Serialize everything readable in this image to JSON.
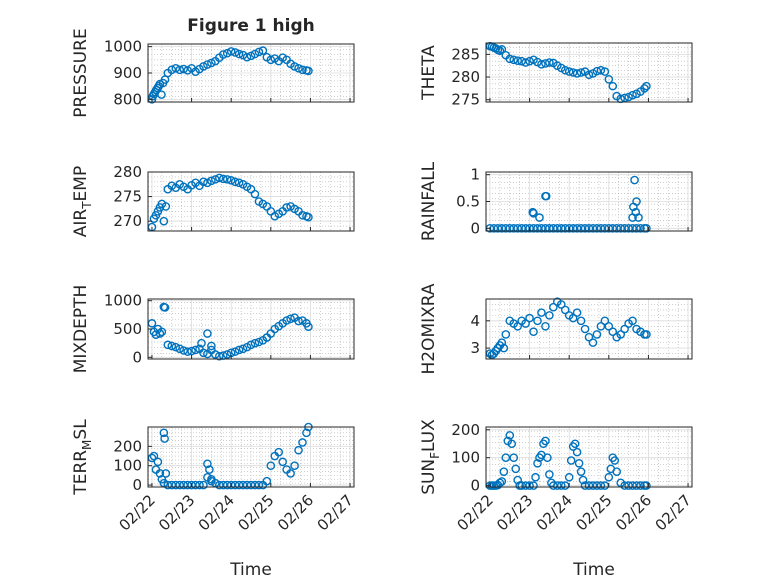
{
  "figure": {
    "title": "Figure 1 high",
    "marker_color": "#0072BD",
    "axes_color": "#262626",
    "grid_color": "#b0b0b0"
  },
  "chart_data": [
    {
      "type": "scatter",
      "title": "Figure 1 high",
      "ylabel": "PRESSURE",
      "ylim": [
        790,
        1010
      ],
      "yticks": [
        800,
        900,
        1000
      ],
      "ytick_labels": [
        "800",
        "900",
        "1000"
      ],
      "x": [
        0,
        0.02,
        0.05,
        0.08,
        0.11,
        0.14,
        0.17,
        0.2,
        0.24,
        0.28,
        0.33,
        0.4,
        0.5,
        0.6,
        0.7,
        0.8,
        0.9,
        1.0,
        1.1,
        1.2,
        1.3,
        1.4,
        1.5,
        1.6,
        1.7,
        1.8,
        1.9,
        2.0,
        2.1,
        2.2,
        2.3,
        2.4,
        2.5,
        2.6,
        2.7,
        2.8,
        2.9,
        3.0,
        3.1,
        3.2,
        3.3,
        3.4,
        3.5,
        3.6,
        3.7,
        3.8,
        3.9,
        3.95
      ],
      "values": [
        800,
        812,
        820,
        828,
        836,
        843,
        850,
        858,
        818,
        862,
        875,
        900,
        912,
        918,
        912,
        915,
        910,
        918,
        905,
        915,
        925,
        932,
        938,
        945,
        958,
        970,
        975,
        982,
        978,
        972,
        968,
        960,
        965,
        972,
        980,
        985,
        960,
        950,
        955,
        945,
        958,
        950,
        935,
        925,
        918,
        912,
        910,
        908
      ]
    },
    {
      "type": "scatter",
      "ylabel": "THETA",
      "ylim": [
        274.5,
        287.5
      ],
      "yticks": [
        275,
        280,
        285
      ],
      "ytick_labels": [
        "275",
        "280",
        "285"
      ],
      "x": [
        0,
        0.05,
        0.1,
        0.15,
        0.2,
        0.25,
        0.3,
        0.4,
        0.5,
        0.6,
        0.7,
        0.8,
        0.9,
        1.0,
        1.1,
        1.2,
        1.3,
        1.4,
        1.5,
        1.6,
        1.7,
        1.8,
        1.9,
        2.0,
        2.1,
        2.2,
        2.3,
        2.4,
        2.5,
        2.6,
        2.7,
        2.8,
        2.9,
        3.0,
        3.1,
        3.2,
        3.3,
        3.4,
        3.5,
        3.6,
        3.7,
        3.8,
        3.9,
        3.95
      ],
      "values": [
        286.8,
        286.7,
        286.5,
        286.3,
        286.0,
        285.8,
        286.1,
        284.8,
        284.0,
        283.8,
        283.6,
        283.5,
        283.2,
        283.5,
        283.8,
        283.3,
        282.8,
        283.0,
        283.2,
        283.1,
        282.5,
        282.0,
        281.5,
        281.2,
        281.0,
        280.8,
        281.0,
        281.2,
        280.5,
        280.8,
        281.3,
        281.5,
        281.2,
        279.5,
        278.0,
        275.8,
        275.2,
        275.4,
        275.6,
        276.0,
        276.3,
        276.8,
        277.5,
        278.0
      ]
    },
    {
      "type": "scatter",
      "ylabel": "AIR_TEMP",
      "ylim": [
        268,
        280
      ],
      "yticks": [
        270,
        275,
        280
      ],
      "ytick_labels": [
        "270",
        "275",
        "280"
      ],
      "x": [
        0,
        0.05,
        0.1,
        0.15,
        0.2,
        0.25,
        0.3,
        0.35,
        0.4,
        0.5,
        0.6,
        0.7,
        0.8,
        0.9,
        1.0,
        1.1,
        1.2,
        1.3,
        1.4,
        1.5,
        1.6,
        1.7,
        1.8,
        1.9,
        2.0,
        2.1,
        2.2,
        2.3,
        2.4,
        2.5,
        2.6,
        2.7,
        2.8,
        2.9,
        3.0,
        3.1,
        3.2,
        3.3,
        3.4,
        3.5,
        3.6,
        3.7,
        3.8,
        3.9,
        3.95
      ],
      "values": [
        268.8,
        270.5,
        271.2,
        272.0,
        272.8,
        273.5,
        270.0,
        273.0,
        276.5,
        277.2,
        276.8,
        277.5,
        277.0,
        276.5,
        277.3,
        277.8,
        277.2,
        278.0,
        277.8,
        278.2,
        278.5,
        278.8,
        278.6,
        278.5,
        278.3,
        278.0,
        277.8,
        277.5,
        277.0,
        276.5,
        275.5,
        274.0,
        273.5,
        273.0,
        272.0,
        271.0,
        271.5,
        272.0,
        272.8,
        273.0,
        272.5,
        272.0,
        271.2,
        271.0,
        270.8
      ]
    },
    {
      "type": "scatter",
      "ylabel": "RAINFALL",
      "ylim": [
        -0.05,
        1.05
      ],
      "yticks": [
        0,
        0.5,
        1
      ],
      "ytick_labels": [
        "0",
        "0.5",
        "1"
      ],
      "x": [
        0,
        0.1,
        0.2,
        0.3,
        0.4,
        0.5,
        0.6,
        0.7,
        0.8,
        0.9,
        1.0,
        1.1,
        1.2,
        1.3,
        1.4,
        1.5,
        1.6,
        1.7,
        1.8,
        1.9,
        2.0,
        2.1,
        2.2,
        2.3,
        2.4,
        2.5,
        2.6,
        2.7,
        2.8,
        2.9,
        3.0,
        3.1,
        3.2,
        3.3,
        3.4,
        3.5,
        3.6,
        3.7,
        3.8,
        3.9,
        3.95,
        1.08,
        1.1,
        1.25,
        1.4,
        1.42,
        3.6,
        3.62,
        3.65,
        3.7,
        3.75,
        3.68
      ],
      "values": [
        0,
        0,
        0,
        0,
        0,
        0,
        0,
        0,
        0,
        0,
        0,
        0,
        0,
        0,
        0,
        0,
        0,
        0,
        0,
        0,
        0,
        0,
        0,
        0,
        0,
        0,
        0,
        0,
        0,
        0,
        0,
        0,
        0,
        0,
        0,
        0,
        0,
        0,
        0,
        0,
        0,
        0.3,
        0.28,
        0.2,
        0.6,
        0.6,
        0.2,
        0.4,
        0.9,
        0.5,
        0.2,
        0.3
      ]
    },
    {
      "type": "scatter",
      "ylabel": "MIXDEPTH",
      "ylim": [
        -30,
        1030
      ],
      "yticks": [
        0,
        500,
        1000
      ],
      "ytick_labels": [
        "0",
        "500",
        "1000"
      ],
      "x": [
        0,
        0.05,
        0.1,
        0.15,
        0.2,
        0.25,
        0.3,
        0.33,
        0.4,
        0.5,
        0.6,
        0.7,
        0.8,
        0.9,
        1.0,
        1.1,
        1.2,
        1.3,
        1.4,
        1.5,
        1.6,
        1.7,
        1.8,
        1.9,
        2.0,
        2.1,
        2.2,
        2.3,
        2.4,
        2.5,
        2.6,
        2.7,
        2.8,
        2.9,
        3.0,
        3.1,
        3.2,
        3.3,
        3.4,
        3.5,
        3.6,
        3.7,
        3.8,
        3.9,
        3.95,
        1.4,
        1.25,
        1.5,
        2.9
      ],
      "values": [
        600,
        450,
        400,
        500,
        420,
        450,
        890,
        880,
        220,
        200,
        180,
        150,
        120,
        100,
        110,
        130,
        150,
        80,
        60,
        130,
        50,
        20,
        30,
        50,
        80,
        100,
        130,
        150,
        180,
        220,
        250,
        270,
        300,
        350,
        420,
        500,
        550,
        600,
        650,
        680,
        700,
        640,
        650,
        600,
        540,
        420,
        250,
        200,
        350
      ]
    },
    {
      "type": "scatter",
      "ylabel": "H2OMIXRA",
      "ylim": [
        2.6,
        4.8
      ],
      "yticks": [
        3,
        4
      ],
      "ytick_labels": [
        "3",
        "4"
      ],
      "x": [
        0,
        0.05,
        0.1,
        0.15,
        0.2,
        0.25,
        0.3,
        0.35,
        0.4,
        0.5,
        0.6,
        0.7,
        0.8,
        0.9,
        1.0,
        1.1,
        1.2,
        1.3,
        1.4,
        1.5,
        1.6,
        1.7,
        1.8,
        1.9,
        2.0,
        2.1,
        2.2,
        2.3,
        2.4,
        2.5,
        2.6,
        2.7,
        2.8,
        2.9,
        3.0,
        3.1,
        3.2,
        3.3,
        3.4,
        3.5,
        3.6,
        3.7,
        3.8,
        3.9,
        3.95
      ],
      "values": [
        2.8,
        2.75,
        2.8,
        2.9,
        3.0,
        3.1,
        3.2,
        3.0,
        3.5,
        4.0,
        3.9,
        3.8,
        4.0,
        3.9,
        4.1,
        3.6,
        4.0,
        4.3,
        3.8,
        4.2,
        4.5,
        4.7,
        4.6,
        4.4,
        4.2,
        4.1,
        4.3,
        4.0,
        3.7,
        3.4,
        3.2,
        3.5,
        3.8,
        4.0,
        3.8,
        3.6,
        3.4,
        3.5,
        3.7,
        3.9,
        4.0,
        3.7,
        3.6,
        3.5,
        3.5
      ]
    },
    {
      "type": "scatter",
      "ylabel": "TERR_MSL",
      "ylim": [
        -10,
        300
      ],
      "yticks": [
        0,
        100,
        200
      ],
      "ytick_labels": [
        "0",
        "100",
        "200"
      ],
      "x": [
        0,
        0.05,
        0.1,
        0.15,
        0.2,
        0.25,
        0.3,
        0.35,
        0.4,
        0.5,
        0.6,
        0.7,
        0.8,
        0.9,
        1.0,
        1.1,
        1.2,
        1.3,
        1.4,
        1.5,
        1.6,
        1.7,
        1.8,
        1.9,
        2.0,
        2.1,
        2.2,
        2.3,
        2.4,
        2.5,
        2.6,
        2.7,
        2.8,
        2.9,
        3.0,
        3.1,
        3.2,
        3.3,
        3.4,
        3.5,
        3.6,
        3.7,
        3.8,
        3.9,
        3.95,
        0.3,
        0.32,
        1.4,
        1.45,
        1.5
      ],
      "values": [
        140,
        150,
        80,
        120,
        60,
        30,
        10,
        60,
        0,
        0,
        0,
        0,
        0,
        0,
        0,
        0,
        0,
        0,
        40,
        20,
        10,
        0,
        0,
        0,
        0,
        0,
        0,
        0,
        0,
        0,
        0,
        0,
        0,
        20,
        100,
        150,
        170,
        120,
        80,
        60,
        100,
        180,
        220,
        270,
        300,
        270,
        240,
        110,
        80,
        30
      ]
    },
    {
      "type": "scatter",
      "ylabel": "SUN_FLUX",
      "ylim": [
        -5,
        210
      ],
      "yticks": [
        0,
        100,
        200
      ],
      "ytick_labels": [
        "0",
        "100",
        "200"
      ],
      "x": [
        0,
        0.05,
        0.1,
        0.15,
        0.2,
        0.25,
        0.3,
        0.35,
        0.4,
        0.45,
        0.5,
        0.55,
        0.6,
        0.65,
        0.7,
        0.75,
        0.8,
        0.9,
        1.0,
        1.1,
        1.15,
        1.2,
        1.25,
        1.3,
        1.35,
        1.4,
        1.45,
        1.5,
        1.55,
        1.6,
        1.7,
        1.8,
        1.9,
        2.0,
        2.05,
        2.1,
        2.15,
        2.2,
        2.25,
        2.3,
        2.35,
        2.4,
        2.5,
        2.6,
        2.7,
        2.8,
        2.9,
        3.0,
        3.05,
        3.1,
        3.15,
        3.2,
        3.3,
        3.4,
        3.5,
        3.6,
        3.7,
        3.8,
        3.9,
        3.95
      ],
      "values": [
        0,
        0,
        0,
        0,
        2,
        10,
        15,
        50,
        100,
        160,
        180,
        150,
        100,
        60,
        20,
        0,
        0,
        0,
        0,
        0,
        30,
        80,
        100,
        110,
        150,
        160,
        100,
        40,
        10,
        0,
        0,
        0,
        0,
        30,
        90,
        140,
        150,
        120,
        80,
        50,
        20,
        0,
        0,
        0,
        0,
        0,
        0,
        30,
        60,
        100,
        90,
        50,
        10,
        0,
        0,
        0,
        0,
        0,
        0,
        0
      ]
    }
  ],
  "x_axis": {
    "label": "Time",
    "range": [
      -0.1,
      5.1
    ],
    "ticks": [
      0,
      1,
      2,
      3,
      4,
      5
    ],
    "tick_labels": [
      "02/22",
      "02/23",
      "02/24",
      "02/25",
      "02/26",
      "02/27"
    ]
  }
}
